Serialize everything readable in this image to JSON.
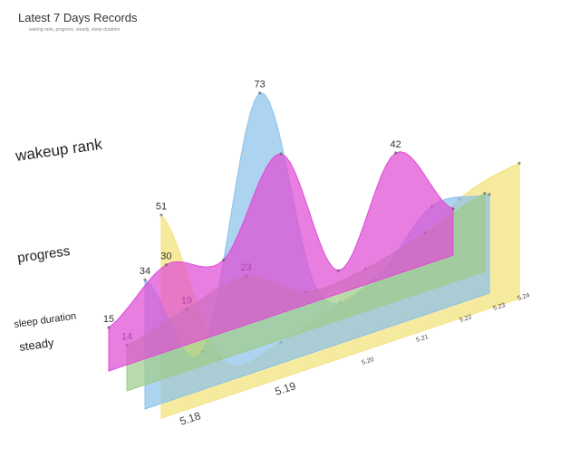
{
  "chart_data": {
    "type": "area",
    "title": "Latest 7 Days Records",
    "subtitle": "waking rank, progress, steady, sleep duration",
    "categories": [
      "5.18",
      "5.19",
      "5.20",
      "5.21",
      "5.22",
      "5.23",
      "5.24"
    ],
    "series": [
      {
        "name": "wakeup rank",
        "color": "#f2e27a",
        "values": [
          51,
          10,
          9,
          14,
          18,
          30,
          34
        ],
        "labels": [
          "51",
          "",
          "",
          "",
          "",
          "",
          ""
        ]
      },
      {
        "name": "progress",
        "color": "#8cc2ea",
        "values": [
          34,
          10,
          73,
          16,
          14,
          28,
          26
        ],
        "labels": [
          "34",
          "",
          "73",
          "",
          "",
          "",
          ""
        ]
      },
      {
        "name": "sleep duration",
        "color": "#e04cd6",
        "values": [
          15,
          30,
          25,
          55,
          8,
          42,
          16
        ],
        "labels": [
          "15",
          "30",
          "",
          "",
          "",
          "42",
          ""
        ]
      },
      {
        "name": "steady",
        "color": "#9fcc8a",
        "values": [
          14,
          19,
          23,
          12,
          13,
          18,
          24
        ],
        "labels": [
          "14",
          "19",
          "23",
          "",
          "",
          "",
          ""
        ]
      }
    ],
    "series_labels": [
      "wakeup rank",
      "progress",
      "sleep duration",
      "steady"
    ],
    "peak_labels": [
      "51",
      "34",
      "15",
      "14",
      "30",
      "19",
      "23",
      "73"
    ]
  }
}
